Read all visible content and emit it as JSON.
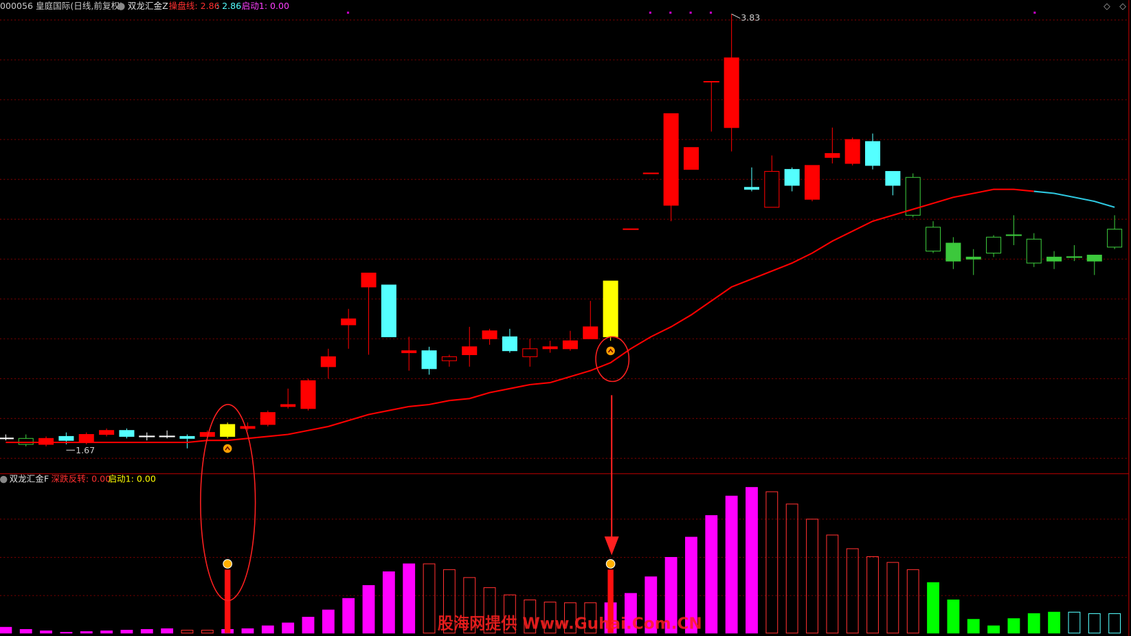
{
  "header": {
    "symbol": "000056 皇庭国际(日线,前复权)",
    "indicator": "双龙汇金Z",
    "readouts": [
      "操盘线: 2.86",
      ": 2.86",
      "启动1: 0.00"
    ]
  },
  "watermark": "股海网提供 Www.Guhai.Com.CN",
  "chart_data": [
    {
      "type": "candlestick",
      "open": [
        1.7,
        1.7,
        1.67,
        1.71,
        1.68,
        1.72,
        1.74,
        1.71,
        1.71,
        1.71,
        1.71,
        1.71,
        1.75,
        1.77,
        1.86,
        1.85,
        2.06,
        2.27,
        2.46,
        2.47,
        2.13,
        2.14,
        2.09,
        2.12,
        2.2,
        2.21,
        2.11,
        2.15,
        2.15,
        2.2,
        2.21,
        2.75,
        3.03,
        2.87,
        3.05,
        3.49,
        3.26,
        2.96,
        2.86,
        3.05,
        2.9,
        3.11,
        3.08,
        3.19,
        3.04,
        3.01,
        2.76,
        2.68,
        2.61,
        2.63,
        2.72,
        2.7,
        2.61,
        2.61,
        2.62,
        2.66
      ],
      "high": [
        1.72,
        1.72,
        1.71,
        1.73,
        1.73,
        1.75,
        1.75,
        1.73,
        1.74,
        1.72,
        1.74,
        1.78,
        1.78,
        1.84,
        1.95,
        2.0,
        2.15,
        2.35,
        2.53,
        2.47,
        2.21,
        2.16,
        2.12,
        2.26,
        2.25,
        2.25,
        2.2,
        2.19,
        2.24,
        2.39,
        2.49,
        2.75,
        3.03,
        3.33,
        3.16,
        3.49,
        3.83,
        3.06,
        3.12,
        3.06,
        3.07,
        3.26,
        3.21,
        3.23,
        3.04,
        3.03,
        2.79,
        2.71,
        2.65,
        2.72,
        2.82,
        2.73,
        2.64,
        2.67,
        2.62,
        2.82
      ],
      "low": [
        1.69,
        1.66,
        1.66,
        1.67,
        1.67,
        1.71,
        1.7,
        1.69,
        1.7,
        1.65,
        1.7,
        1.7,
        1.74,
        1.76,
        1.85,
        1.84,
        2.0,
        2.15,
        2.12,
        2.21,
        2.04,
        2.02,
        2.06,
        2.06,
        2.17,
        2.13,
        2.06,
        2.13,
        2.14,
        2.2,
        2.19,
        2.75,
        3.03,
        2.79,
        3.05,
        3.24,
        3.14,
        2.94,
        2.86,
        2.94,
        2.89,
        3.08,
        3.07,
        3.05,
        2.92,
        2.81,
        2.63,
        2.55,
        2.52,
        2.61,
        2.67,
        2.56,
        2.55,
        2.59,
        2.52,
        2.65
      ],
      "close": [
        1.7,
        1.67,
        1.7,
        1.69,
        1.72,
        1.74,
        1.71,
        1.71,
        1.71,
        1.7,
        1.73,
        1.77,
        1.76,
        1.83,
        1.87,
        1.99,
        2.11,
        2.3,
        2.53,
        2.21,
        2.14,
        2.05,
        2.11,
        2.16,
        2.24,
        2.14,
        2.15,
        2.16,
        2.19,
        2.26,
        2.49,
        2.75,
        3.03,
        3.33,
        3.16,
        3.49,
        3.61,
        2.95,
        3.04,
        2.97,
        3.07,
        3.13,
        3.2,
        3.07,
        2.97,
        2.82,
        2.64,
        2.59,
        2.6,
        2.71,
        2.72,
        2.58,
        2.59,
        2.61,
        2.59,
        2.75
      ],
      "colors": [
        "#ffffff",
        "#3cc83c",
        "#ff0000",
        "#54ffff",
        "#ff0000",
        "#ff0000",
        "#54ffff",
        "#ffffff",
        "#ffffff",
        "#54ffff",
        "#ff0000",
        "#ffff00",
        "#ff0000",
        "#ff0000",
        "#ff0000",
        "#ff0000",
        "#ff0000",
        "#ff0000",
        "#ff0000",
        "#54ffff",
        "#ff0000",
        "#54ffff",
        "#ff0000",
        "#ff0000",
        "#ff0000",
        "#54ffff",
        "#ff0000",
        "#ff0000",
        "#ff0000",
        "#ff0000",
        "#ffff00",
        "#ff0000",
        "#ff0000",
        "#ff0000",
        "#ff0000",
        "#ff0000",
        "#ff0000",
        "#54ffff",
        "#ff0000",
        "#54ffff",
        "#ff0000",
        "#ff0000",
        "#ff0000",
        "#54ffff",
        "#54ffff",
        "#3cc83c",
        "#3cc83c",
        "#3cc83c",
        "#3cc83c",
        "#3cc83c",
        "#3cc83c",
        "#3cc83c",
        "#3cc83c",
        "#3cc83c",
        "#3cc83c",
        "#3cc83c"
      ],
      "hollow": [
        false,
        true,
        false,
        false,
        false,
        false,
        false,
        false,
        false,
        false,
        false,
        false,
        false,
        false,
        false,
        false,
        false,
        false,
        false,
        false,
        false,
        false,
        true,
        false,
        false,
        false,
        true,
        false,
        false,
        false,
        false,
        false,
        false,
        false,
        false,
        false,
        false,
        false,
        true,
        false,
        false,
        false,
        false,
        false,
        false,
        true,
        true,
        false,
        false,
        true,
        false,
        true,
        false,
        false,
        false,
        true
      ],
      "series": [
        {
          "name": "操盘线",
          "color": "#ff0000",
          "values": [
            1.68,
            1.68,
            1.68,
            1.68,
            1.68,
            1.68,
            1.68,
            1.68,
            1.68,
            1.68,
            1.69,
            1.69,
            1.7,
            1.71,
            1.72,
            1.74,
            1.76,
            1.79,
            1.82,
            1.84,
            1.86,
            1.87,
            1.89,
            1.9,
            1.93,
            1.95,
            1.97,
            1.98,
            2.01,
            2.04,
            2.08,
            2.15,
            2.21,
            2.26,
            2.32,
            2.39,
            2.46,
            2.5,
            2.54,
            2.58,
            2.63,
            2.69,
            2.74,
            2.79,
            2.82,
            2.85,
            2.88,
            2.91,
            2.93,
            2.95,
            2.95,
            2.94,
            null,
            null,
            null,
            null
          ]
        },
        {
          "color": "#2ec8e0",
          "values": [
            null,
            null,
            null,
            null,
            null,
            null,
            null,
            null,
            null,
            null,
            null,
            null,
            null,
            null,
            null,
            null,
            null,
            null,
            null,
            null,
            null,
            null,
            null,
            null,
            null,
            null,
            null,
            null,
            null,
            null,
            null,
            null,
            null,
            null,
            null,
            null,
            null,
            null,
            null,
            null,
            null,
            null,
            null,
            null,
            null,
            null,
            null,
            null,
            null,
            null,
            null,
            2.94,
            2.93,
            2.91,
            2.89,
            2.86
          ]
        }
      ],
      "high_label": 3.83,
      "low_label": 1.67,
      "ylim": [
        1.53,
        3.9
      ],
      "yticks": [
        1.6,
        1.8,
        2.0,
        2.2,
        2.4,
        2.6,
        2.8,
        3.0,
        3.2,
        3.4,
        3.6,
        3.8
      ],
      "grid": true
    },
    {
      "type": "bar",
      "title": "双龙汇金F",
      "readouts": [
        "深跌反转: 0.00",
        "启动1: 0.00"
      ],
      "values": [
        8,
        5,
        3,
        1,
        2,
        3,
        4,
        5,
        6,
        4,
        4,
        5,
        6,
        10,
        14,
        22,
        32,
        48,
        66,
        85,
        96,
        96,
        88,
        77,
        63,
        53,
        46,
        43,
        42,
        42,
        42,
        55,
        78,
        105,
        133,
        163,
        190,
        202,
        196,
        179,
        158,
        136,
        117,
        106,
        98,
        88,
        70,
        46,
        19,
        10,
        20,
        27,
        29,
        29,
        27,
        27
      ],
      "colors": [
        "#ff00ff",
        "#ff00ff",
        "#ff00ff",
        "#ff00ff",
        "#ff00ff",
        "#ff00ff",
        "#ff00ff",
        "#ff00ff",
        "#ff00ff",
        "#ff3030",
        "#ff3030",
        "#ff00ff",
        "#ff00ff",
        "#ff00ff",
        "#ff00ff",
        "#ff00ff",
        "#ff00ff",
        "#ff00ff",
        "#ff00ff",
        "#ff00ff",
        "#ff00ff",
        "#ff3030",
        "#ff3030",
        "#ff3030",
        "#ff3030",
        "#ff3030",
        "#ff3030",
        "#ff3030",
        "#ff3030",
        "#ff3030",
        "#ff00ff",
        "#ff00ff",
        "#ff00ff",
        "#ff00ff",
        "#ff00ff",
        "#ff00ff",
        "#ff00ff",
        "#ff00ff",
        "#ff3030",
        "#ff3030",
        "#ff3030",
        "#ff3030",
        "#ff3030",
        "#ff3030",
        "#ff3030",
        "#ff3030",
        "#00ff00",
        "#00ff00",
        "#00ff00",
        "#00ff00",
        "#00ff00",
        "#00ff00",
        "#00ff00",
        "#54ffff",
        "#54ffff",
        "#54ffff"
      ],
      "hollow": [
        false,
        false,
        false,
        false,
        false,
        false,
        false,
        false,
        false,
        true,
        true,
        false,
        false,
        false,
        false,
        false,
        false,
        false,
        false,
        false,
        false,
        true,
        true,
        true,
        true,
        true,
        true,
        true,
        true,
        true,
        false,
        false,
        false,
        false,
        false,
        false,
        false,
        false,
        true,
        true,
        true,
        true,
        true,
        true,
        true,
        true,
        false,
        false,
        false,
        false,
        false,
        false,
        false,
        true,
        true,
        true
      ],
      "signals": [
        null,
        null,
        null,
        null,
        null,
        null,
        null,
        null,
        null,
        null,
        null,
        88,
        null,
        null,
        null,
        null,
        null,
        null,
        null,
        null,
        null,
        null,
        null,
        null,
        null,
        null,
        null,
        null,
        null,
        null,
        88,
        null,
        null,
        null,
        null,
        null,
        null,
        null,
        null,
        null,
        null,
        null,
        null,
        null,
        null,
        null,
        null,
        null,
        null,
        null,
        null,
        null,
        null,
        null,
        null,
        null
      ],
      "ylim": [
        0,
        220
      ],
      "yticks": [
        52,
        105,
        158
      ],
      "grid": true
    }
  ]
}
